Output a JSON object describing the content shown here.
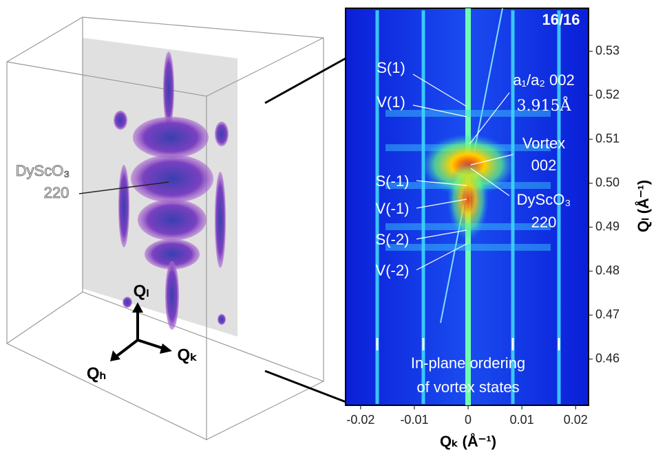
{
  "left_panel": {
    "label": [
      "DyScO₃",
      "220"
    ],
    "axes": {
      "up": "Qₗ",
      "right": "Qₖ",
      "out": "Qₕ"
    }
  },
  "right_panel": {
    "frame": "16/16",
    "peaks": [
      "S(1)",
      "V(1)",
      "S(-1)",
      "V(-1)",
      "S(-2)",
      "V(-2)"
    ],
    "film_peak": [
      "a₁/a₂ 002",
      "3.915Å"
    ],
    "vortex_peak": [
      "Vortex",
      "002"
    ],
    "substrate_peak": [
      "DyScO₃",
      "220"
    ],
    "note": [
      "In-plane ordering",
      "of vortex states"
    ],
    "xlabel": "Qₖ (Å⁻¹)",
    "ylabel": "Qₗ (Å⁻¹)",
    "xlim": [
      -0.0228,
      0.0224
    ],
    "ylim": [
      0.4495,
      0.5398
    ],
    "xticks": [
      -0.02,
      -0.01,
      0,
      0.01,
      0.02
    ],
    "yticks": [
      0.46,
      0.47,
      0.48,
      0.49,
      0.5,
      {
        "value": 0.5,
        "label": "0.50"
      },
      0.51,
      0.52,
      0.53
    ]
  }
}
